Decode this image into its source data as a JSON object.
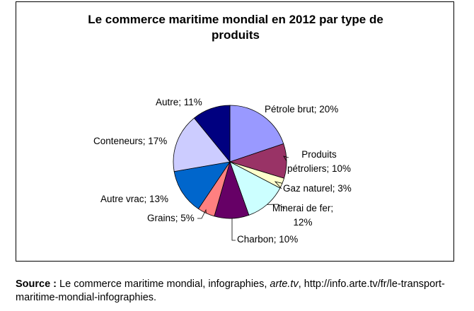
{
  "chart_data": {
    "type": "pie",
    "title_line1": "Le commerce maritime mondial en 2012 par type de",
    "title_line2": "produits",
    "slices": [
      {
        "name": "Pétrole brut",
        "value": 20,
        "label": "Pétrole brut; 20%",
        "color": "#9999ff"
      },
      {
        "name": "Produits pétroliers",
        "value": 10,
        "label_line1": "Produits",
        "label_line2": "pétroliers; 10%",
        "color": "#993366"
      },
      {
        "name": "Gaz naturel",
        "value": 3,
        "label": "Gaz naturel; 3%",
        "color": "#ffffcc"
      },
      {
        "name": "Minerai de fer",
        "value": 12,
        "label_line1": "Minerai de fer;",
        "label_line2": "12%",
        "color": "#ccffff"
      },
      {
        "name": "Charbon",
        "value": 10,
        "label": "Charbon; 10%",
        "color": "#660066"
      },
      {
        "name": "Grains",
        "value": 5,
        "label": "Grains; 5%",
        "color": "#ff8080"
      },
      {
        "name": "Autre vrac",
        "value": 13,
        "label": "Autre vrac; 13%",
        "color": "#0066cc"
      },
      {
        "name": "Conteneurs",
        "value": 17,
        "label": "Conteneurs; 17%",
        "color": "#ccccff"
      },
      {
        "name": "Autre",
        "value": 11,
        "label": "Autre; 11%",
        "color": "#000080"
      }
    ],
    "legend": "none"
  },
  "source": {
    "label": "Source :",
    "text1": " Le commerce maritime mondial, infographies, ",
    "site": "arte.tv",
    "text2": ", http://info.arte.tv/fr/le-transport-maritime-mondial-infographies."
  }
}
